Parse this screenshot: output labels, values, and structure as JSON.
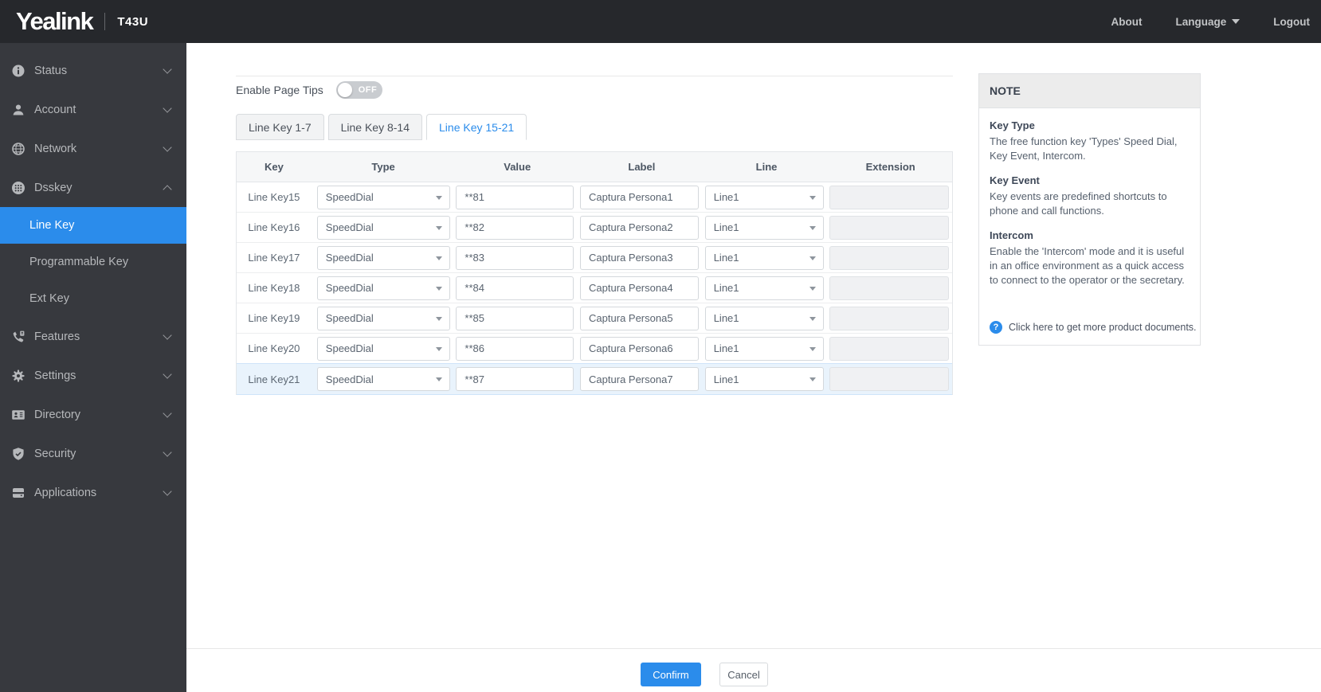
{
  "topbar": {
    "brand": "Yealink",
    "model": "T43U",
    "links": [
      {
        "label": "About",
        "caret": false
      },
      {
        "label": "Language",
        "caret": true
      },
      {
        "label": "Logout",
        "caret": false
      }
    ]
  },
  "sidebar": {
    "items": [
      {
        "label": "Status",
        "icon": "info-icon",
        "expanded": false
      },
      {
        "label": "Account",
        "icon": "user-icon",
        "expanded": false
      },
      {
        "label": "Network",
        "icon": "globe-icon",
        "expanded": false
      },
      {
        "label": "Dsskey",
        "icon": "keypad-icon",
        "expanded": true,
        "children": [
          {
            "label": "Line Key",
            "selected": true
          },
          {
            "label": "Programmable Key",
            "selected": false
          },
          {
            "label": "Ext Key",
            "selected": false
          }
        ]
      },
      {
        "label": "Features",
        "icon": "phone-icon",
        "expanded": false
      },
      {
        "label": "Settings",
        "icon": "gear-icon",
        "expanded": false
      },
      {
        "label": "Directory",
        "icon": "contact-card-icon",
        "expanded": false
      },
      {
        "label": "Security",
        "icon": "shield-icon",
        "expanded": false
      },
      {
        "label": "Applications",
        "icon": "drive-icon",
        "expanded": false
      }
    ]
  },
  "main": {
    "page_tips": {
      "label": "Enable Page Tips",
      "state": "OFF"
    },
    "tabs": [
      {
        "label": "Line Key 1-7",
        "active": false
      },
      {
        "label": "Line Key 8-14",
        "active": false
      },
      {
        "label": "Line Key 15-21",
        "active": true
      }
    ],
    "table": {
      "headers": [
        "Key",
        "Type",
        "Value",
        "Label",
        "Line",
        "Extension"
      ],
      "rows": [
        {
          "key": "Line Key15",
          "type": "SpeedDial",
          "value": "**81",
          "label": "Captura Persona1",
          "line": "Line1",
          "extension": "",
          "highlight": false
        },
        {
          "key": "Line Key16",
          "type": "SpeedDial",
          "value": "**82",
          "label": "Captura Persona2",
          "line": "Line1",
          "extension": "",
          "highlight": false
        },
        {
          "key": "Line Key17",
          "type": "SpeedDial",
          "value": "**83",
          "label": "Captura Persona3",
          "line": "Line1",
          "extension": "",
          "highlight": false
        },
        {
          "key": "Line Key18",
          "type": "SpeedDial",
          "value": "**84",
          "label": "Captura Persona4",
          "line": "Line1",
          "extension": "",
          "highlight": false
        },
        {
          "key": "Line Key19",
          "type": "SpeedDial",
          "value": "**85",
          "label": "Captura Persona5",
          "line": "Line1",
          "extension": "",
          "highlight": false
        },
        {
          "key": "Line Key20",
          "type": "SpeedDial",
          "value": "**86",
          "label": "Captura Persona6",
          "line": "Line1",
          "extension": "",
          "highlight": false
        },
        {
          "key": "Line Key21",
          "type": "SpeedDial",
          "value": "**87",
          "label": "Captura Persona7",
          "line": "Line1",
          "extension": "",
          "highlight": true
        }
      ]
    },
    "buttons": {
      "confirm": "Confirm",
      "cancel": "Cancel"
    }
  },
  "note": {
    "title": "NOTE",
    "sections": [
      {
        "heading": "Key Type",
        "body": "The free function key 'Types' Speed Dial, Key Event, Intercom."
      },
      {
        "heading": "Key Event",
        "body": "Key events are predefined shortcuts to phone and call functions."
      },
      {
        "heading": "Intercom",
        "body": "Enable the 'Intercom' mode and it is useful in an office environment as a quick access to connect to the operator or the secretary."
      }
    ],
    "help": {
      "icon": "question-icon",
      "text": "Click here to get more product documents."
    }
  },
  "colors": {
    "accent": "#2b8ceb",
    "topbar_bg": "#26282c",
    "sidebar_bg": "#37393e",
    "highlight_row_bg": "#e9f3fc",
    "note_header_bg": "#ececec"
  }
}
